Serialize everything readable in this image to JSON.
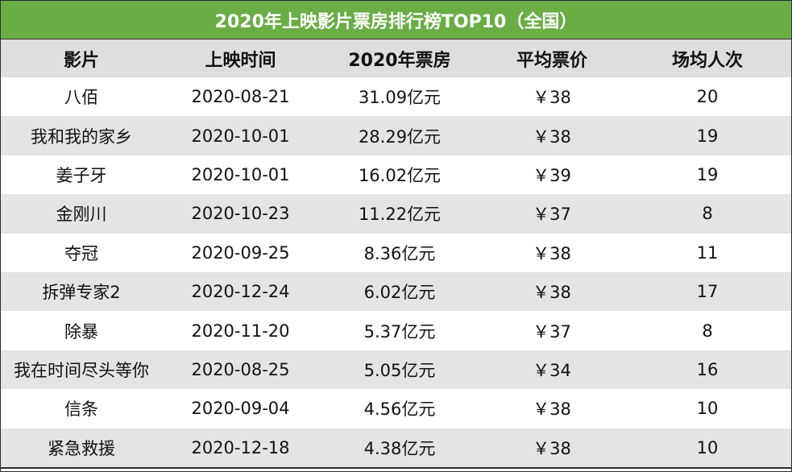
{
  "title": "2020年上映影片票房排行榜TOP10（全国）",
  "colors": {
    "title_bg": "#6aad45",
    "header_bg": "#dedede",
    "stripe_bg": "#e4e4e4",
    "border": "#2e2e2e"
  },
  "columns": [
    "影片",
    "上映时间",
    "2020年票房",
    "平均票价",
    "场均人次"
  ],
  "rows": [
    [
      "八佰",
      "2020-08-21",
      "31.09亿元",
      "￥38",
      "20"
    ],
    [
      "我和我的家乡",
      "2020-10-01",
      "28.29亿元",
      "￥38",
      "19"
    ],
    [
      "姜子牙",
      "2020-10-01",
      "16.02亿元",
      "￥39",
      "19"
    ],
    [
      "金刚川",
      "2020-10-23",
      "11.22亿元",
      "￥37",
      "8"
    ],
    [
      "夺冠",
      "2020-09-25",
      "8.36亿元",
      "￥38",
      "11"
    ],
    [
      "拆弹专家2",
      "2020-12-24",
      "6.02亿元",
      "￥38",
      "17"
    ],
    [
      "除暴",
      "2020-11-20",
      "5.37亿元",
      "￥37",
      "8"
    ],
    [
      "我在时间尽头等你",
      "2020-08-25",
      "5.05亿元",
      "￥34",
      "16"
    ],
    [
      "信条",
      "2020-09-04",
      "4.56亿元",
      "￥38",
      "10"
    ],
    [
      "紧急救援",
      "2020-12-18",
      "4.38亿元",
      "￥38",
      "10"
    ]
  ]
}
